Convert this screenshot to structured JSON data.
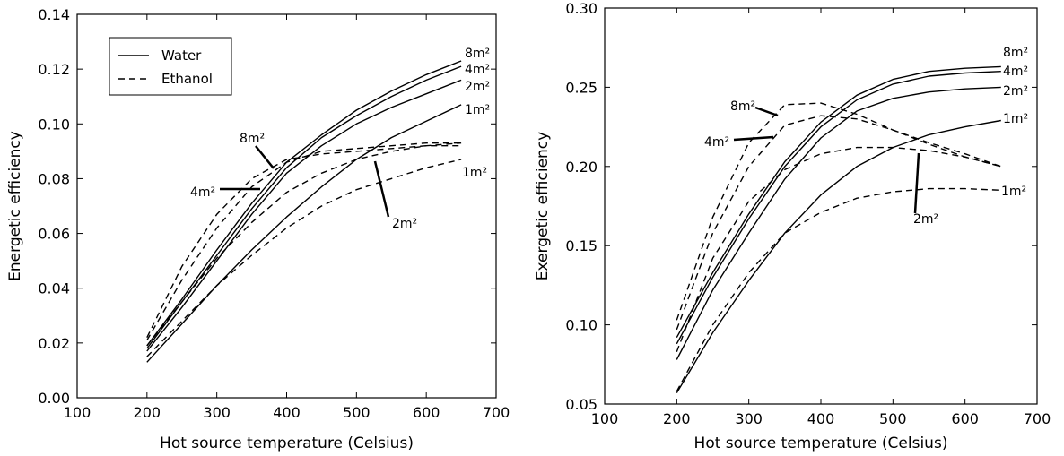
{
  "chart_data": [
    {
      "type": "line",
      "xlabel": "Hot source temperature (Celsius)",
      "ylabel": "Energetic efficiency",
      "xlim": [
        100,
        700
      ],
      "ylim": [
        0.0,
        0.14
      ],
      "xticks": [
        "100",
        "200",
        "300",
        "400",
        "500",
        "600",
        "700"
      ],
      "yticks": [
        "0.00",
        "0.02",
        "0.04",
        "0.06",
        "0.08",
        "0.10",
        "0.12",
        "0.14"
      ],
      "x": [
        200,
        250,
        300,
        350,
        400,
        450,
        500,
        550,
        600,
        650
      ],
      "legend": {
        "position": "top-left",
        "entries": [
          {
            "label": "Water",
            "style": "solid"
          },
          {
            "label": "Ethanol",
            "style": "dashed"
          }
        ]
      },
      "series": [
        {
          "fluid": "Water",
          "area": "1m²",
          "style": "solid",
          "values": [
            0.013,
            0.027,
            0.041,
            0.054,
            0.066,
            0.077,
            0.087,
            0.095,
            0.101,
            0.107
          ]
        },
        {
          "fluid": "Water",
          "area": "2m²",
          "style": "solid",
          "values": [
            0.017,
            0.033,
            0.05,
            0.067,
            0.082,
            0.092,
            0.1,
            0.106,
            0.111,
            0.116
          ]
        },
        {
          "fluid": "Water",
          "area": "4m²",
          "style": "solid",
          "values": [
            0.018,
            0.035,
            0.052,
            0.069,
            0.084,
            0.095,
            0.103,
            0.11,
            0.116,
            0.121
          ]
        },
        {
          "fluid": "Water",
          "area": "8m²",
          "style": "solid",
          "values": [
            0.019,
            0.036,
            0.054,
            0.071,
            0.086,
            0.096,
            0.105,
            0.112,
            0.118,
            0.123
          ]
        },
        {
          "fluid": "Ethanol",
          "area": "1m²",
          "style": "dashed",
          "values": [
            0.015,
            0.028,
            0.041,
            0.052,
            0.062,
            0.07,
            0.076,
            0.08,
            0.084,
            0.087
          ]
        },
        {
          "fluid": "Ethanol",
          "area": "2m²",
          "style": "dashed",
          "values": [
            0.019,
            0.035,
            0.051,
            0.064,
            0.075,
            0.082,
            0.087,
            0.09,
            0.092,
            0.093
          ]
        },
        {
          "fluid": "Ethanol",
          "area": "4m²",
          "style": "dashed",
          "values": [
            0.021,
            0.043,
            0.062,
            0.077,
            0.086,
            0.09,
            0.091,
            0.092,
            0.093,
            0.093
          ]
        },
        {
          "fluid": "Ethanol",
          "area": "8m²",
          "style": "dashed",
          "values": [
            0.022,
            0.048,
            0.067,
            0.08,
            0.087,
            0.089,
            0.09,
            0.091,
            0.092,
            0.092
          ]
        }
      ],
      "labels": [
        "8m²",
        "4m²",
        "2m²",
        "1m²",
        "8m²",
        "4m²",
        "2m²",
        "1m²"
      ]
    },
    {
      "type": "line",
      "xlabel": "Hot source temperature (Celsius)",
      "ylabel": "Exergetic efficiency",
      "xlim": [
        100,
        700
      ],
      "ylim": [
        0.05,
        0.3
      ],
      "xticks": [
        "100",
        "200",
        "300",
        "400",
        "500",
        "600",
        "700"
      ],
      "yticks": [
        "0.05",
        "0.10",
        "0.15",
        "0.20",
        "0.25",
        "0.30"
      ],
      "x": [
        200,
        250,
        300,
        350,
        400,
        450,
        500,
        550,
        600,
        650
      ],
      "series": [
        {
          "fluid": "Water",
          "area": "1m²",
          "style": "solid",
          "values": [
            0.057,
            0.095,
            0.128,
            0.158,
            0.182,
            0.2,
            0.212,
            0.22,
            0.225,
            0.229
          ]
        },
        {
          "fluid": "Water",
          "area": "2m²",
          "style": "solid",
          "values": [
            0.078,
            0.122,
            0.158,
            0.192,
            0.218,
            0.235,
            0.243,
            0.247,
            0.249,
            0.25
          ]
        },
        {
          "fluid": "Water",
          "area": "4m²",
          "style": "solid",
          "values": [
            0.088,
            0.13,
            0.167,
            0.2,
            0.225,
            0.242,
            0.252,
            0.257,
            0.259,
            0.26
          ]
        },
        {
          "fluid": "Water",
          "area": "8m²",
          "style": "solid",
          "values": [
            0.092,
            0.133,
            0.17,
            0.203,
            0.228,
            0.245,
            0.255,
            0.26,
            0.262,
            0.263
          ]
        },
        {
          "fluid": "Ethanol",
          "area": "1m²",
          "style": "dashed",
          "values": [
            0.058,
            0.1,
            0.133,
            0.158,
            0.171,
            0.18,
            0.184,
            0.186,
            0.186,
            0.185
          ]
        },
        {
          "fluid": "Ethanol",
          "area": "2m²",
          "style": "dashed",
          "values": [
            0.083,
            0.142,
            0.178,
            0.198,
            0.208,
            0.212,
            0.212,
            0.21,
            0.206,
            0.2
          ]
        },
        {
          "fluid": "Ethanol",
          "area": "4m²",
          "style": "dashed",
          "values": [
            0.097,
            0.158,
            0.2,
            0.226,
            0.232,
            0.23,
            0.223,
            0.215,
            0.208,
            0.2
          ]
        },
        {
          "fluid": "Ethanol",
          "area": "8m²",
          "style": "dashed",
          "values": [
            0.103,
            0.168,
            0.215,
            0.239,
            0.24,
            0.233,
            0.223,
            0.214,
            0.206,
            0.2
          ]
        }
      ],
      "labels": [
        "8m²",
        "4m²",
        "2m²",
        "1m²",
        "8m²",
        "4m²",
        "2m²",
        "1m²"
      ]
    }
  ]
}
